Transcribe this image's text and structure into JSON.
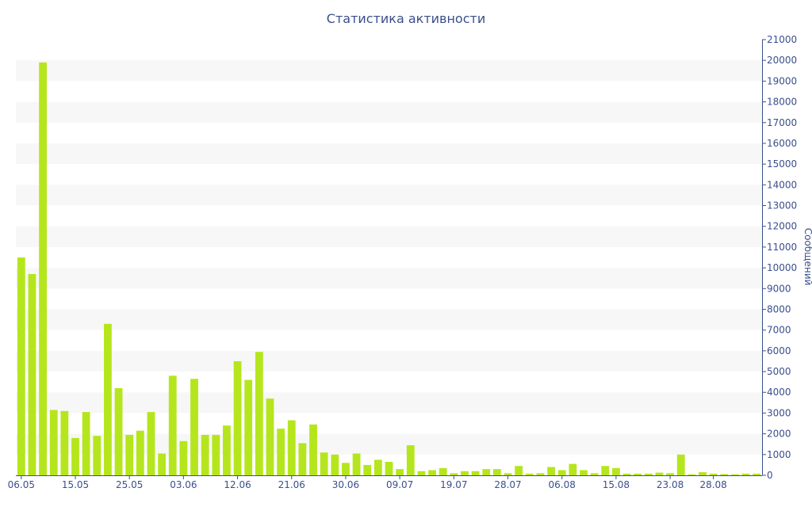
{
  "chart_data": {
    "type": "bar",
    "title": "Статистика активности",
    "ylabel": "Сообщений",
    "xlabel": "",
    "ylim": [
      0,
      21000
    ],
    "ytick_step": 1000,
    "y_axis_position": "right",
    "grid": "alternating horizontal bands",
    "x_tick_labels": [
      "06.05",
      "15.05",
      "25.05",
      "03.06",
      "12.06",
      "21.06",
      "30.06",
      "09.07",
      "19.07",
      "28.07",
      "06.08",
      "15.08",
      "23.08",
      "28.08"
    ],
    "x_tick_indices": [
      0,
      5,
      10,
      15,
      20,
      25,
      30,
      35,
      40,
      45,
      50,
      55,
      60,
      64
    ],
    "values": [
      10500,
      9700,
      19900,
      3150,
      3100,
      1800,
      3050,
      1900,
      7300,
      4200,
      1950,
      2150,
      3050,
      1050,
      4800,
      1650,
      4650,
      1950,
      1950,
      2400,
      5500,
      4600,
      5950,
      3700,
      2250,
      2650,
      1550,
      2450,
      1100,
      1000,
      600,
      1050,
      500,
      750,
      650,
      300,
      1450,
      200,
      250,
      350,
      100,
      200,
      200,
      300,
      300,
      100,
      450,
      80,
      100,
      400,
      250,
      550,
      250,
      100,
      450,
      350,
      80,
      80,
      80,
      130,
      100,
      1000,
      50,
      150,
      80,
      60,
      50,
      80,
      80
    ],
    "bar_color": "#b5e61d",
    "axis_color": "#3a4f8c",
    "band_color": "#f7f7f7"
  }
}
